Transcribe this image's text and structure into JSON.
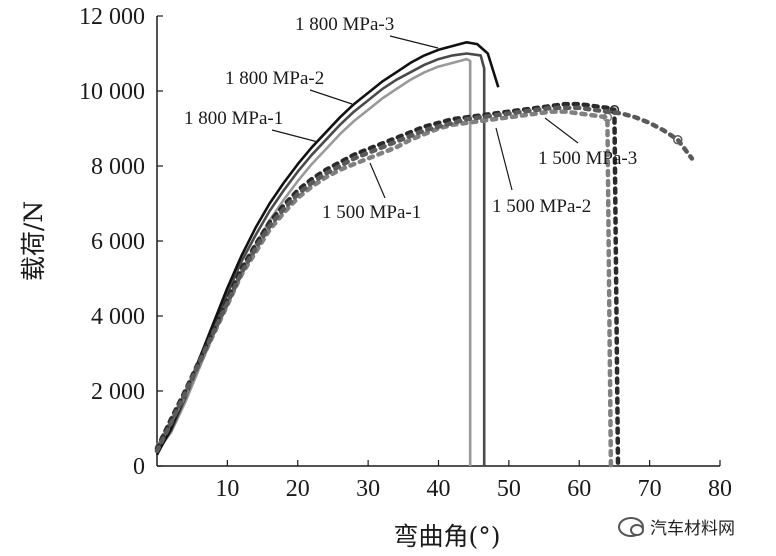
{
  "chart_data": {
    "type": "line",
    "xlabel": "弯曲角(°)",
    "ylabel": "载荷/N",
    "xlim": [
      0,
      80
    ],
    "ylim": [
      0,
      12000
    ],
    "x_ticks": [
      "10",
      "20",
      "30",
      "40",
      "50",
      "60",
      "70",
      "80"
    ],
    "y_ticks": [
      "0",
      "2 000",
      "4 000",
      "6 000",
      "8 000",
      "10 000",
      "12 000"
    ],
    "grid": false,
    "legend": "none",
    "series": [
      {
        "name": "1 800 MPa-1",
        "color": "#9a9a9a",
        "style": "solid",
        "x": [
          0,
          2,
          4,
          6,
          8,
          10,
          12,
          14,
          16,
          18,
          20,
          22,
          24,
          26,
          28,
          30,
          32,
          34,
          36,
          38,
          40,
          42,
          44,
          44.5,
          44.5
        ],
        "y": [
          400,
          900,
          1700,
          2600,
          3500,
          4400,
          5200,
          5900,
          6550,
          7100,
          7600,
          8050,
          8450,
          8850,
          9200,
          9500,
          9800,
          10050,
          10300,
          10500,
          10650,
          10750,
          10850,
          10800,
          0
        ]
      },
      {
        "name": "1 800 MPa-2",
        "color": "#4a4a4a",
        "style": "solid",
        "x": [
          0,
          2,
          4,
          6,
          8,
          10,
          12,
          14,
          16,
          18,
          20,
          22,
          24,
          26,
          28,
          30,
          32,
          34,
          36,
          38,
          40,
          42,
          44,
          46,
          46.5,
          46.5
        ],
        "y": [
          350,
          950,
          1800,
          2700,
          3650,
          4600,
          5450,
          6150,
          6800,
          7350,
          7850,
          8300,
          8700,
          9100,
          9450,
          9750,
          10050,
          10300,
          10500,
          10700,
          10850,
          10950,
          11000,
          10950,
          10600,
          0
        ]
      },
      {
        "name": "1 800 MPa-3",
        "color": "#111111",
        "style": "solid",
        "x": [
          0,
          2,
          4,
          6,
          8,
          10,
          12,
          14,
          16,
          18,
          20,
          22,
          24,
          26,
          28,
          30,
          32,
          34,
          36,
          38,
          40,
          42,
          44,
          45.5,
          47,
          48,
          48.5
        ],
        "y": [
          300,
          1000,
          1900,
          2850,
          3800,
          4750,
          5600,
          6350,
          7000,
          7550,
          8050,
          8500,
          8900,
          9300,
          9650,
          9950,
          10250,
          10500,
          10750,
          10950,
          11100,
          11200,
          11300,
          11250,
          11000,
          10400,
          10100
        ]
      },
      {
        "name": "1 500 MPa-1",
        "color": "#808080",
        "style": "dotted",
        "x": [
          0,
          2,
          4,
          6,
          8,
          10,
          12,
          14,
          16,
          18,
          20,
          22,
          24,
          26,
          28,
          30,
          32,
          34,
          36,
          38,
          40,
          42,
          44,
          46,
          48,
          50,
          52,
          54,
          56,
          58,
          60,
          62,
          64,
          64.5
        ],
        "y": [
          500,
          1200,
          1900,
          2700,
          3500,
          4300,
          5100,
          5700,
          6300,
          6750,
          7150,
          7450,
          7700,
          7900,
          8050,
          8200,
          8350,
          8500,
          8700,
          8850,
          9000,
          9100,
          9150,
          9200,
          9250,
          9300,
          9350,
          9400,
          9450,
          9450,
          9400,
          9350,
          9300,
          0
        ]
      },
      {
        "name": "1 500 MPa-2",
        "color": "#2a2a2a",
        "style": "dotted",
        "x": [
          0,
          2,
          4,
          6,
          8,
          10,
          12,
          14,
          16,
          18,
          20,
          22,
          24,
          26,
          28,
          30,
          32,
          34,
          36,
          38,
          40,
          42,
          44,
          46,
          48,
          50,
          52,
          54,
          56,
          58,
          60,
          62,
          64,
          65,
          65.5
        ],
        "y": [
          450,
          1250,
          2000,
          2800,
          3600,
          4450,
          5250,
          5900,
          6500,
          6950,
          7350,
          7650,
          7900,
          8100,
          8300,
          8450,
          8600,
          8750,
          8900,
          9050,
          9150,
          9250,
          9300,
          9350,
          9400,
          9450,
          9500,
          9550,
          9600,
          9650,
          9650,
          9600,
          9550,
          9500,
          0
        ]
      },
      {
        "name": "1 500 MPa-3",
        "color": "#5a5a5a",
        "style": "dotted",
        "x": [
          0,
          2,
          4,
          6,
          8,
          10,
          12,
          14,
          16,
          18,
          20,
          22,
          24,
          26,
          28,
          30,
          32,
          34,
          36,
          38,
          40,
          42,
          44,
          46,
          48,
          50,
          52,
          54,
          56,
          58,
          60,
          62,
          64,
          66,
          68,
          70,
          72,
          74,
          76
        ],
        "y": [
          400,
          1150,
          1950,
          2750,
          3550,
          4350,
          5150,
          5800,
          6400,
          6850,
          7250,
          7550,
          7800,
          8000,
          8200,
          8350,
          8500,
          8650,
          8800,
          8950,
          9050,
          9150,
          9250,
          9300,
          9350,
          9400,
          9450,
          9500,
          9550,
          9550,
          9550,
          9500,
          9450,
          9400,
          9300,
          9150,
          8950,
          8700,
          8200
        ]
      }
    ],
    "annotations": [
      {
        "text": "1 800 MPa-3",
        "series": "1 800 MPa-3"
      },
      {
        "text": "1 800 MPa-2",
        "series": "1 800 MPa-2"
      },
      {
        "text": "1 800 MPa-1",
        "series": "1 800 MPa-1"
      },
      {
        "text": "1 500 MPa-1",
        "series": "1 500 MPa-1"
      },
      {
        "text": "1 500 MPa-2",
        "series": "1 500 MPa-2"
      },
      {
        "text": "1 500 MPa-3",
        "series": "1 500 MPa-3"
      }
    ]
  },
  "watermark": {
    "text": "汽车材料网",
    "icon": "wechat-icon"
  }
}
